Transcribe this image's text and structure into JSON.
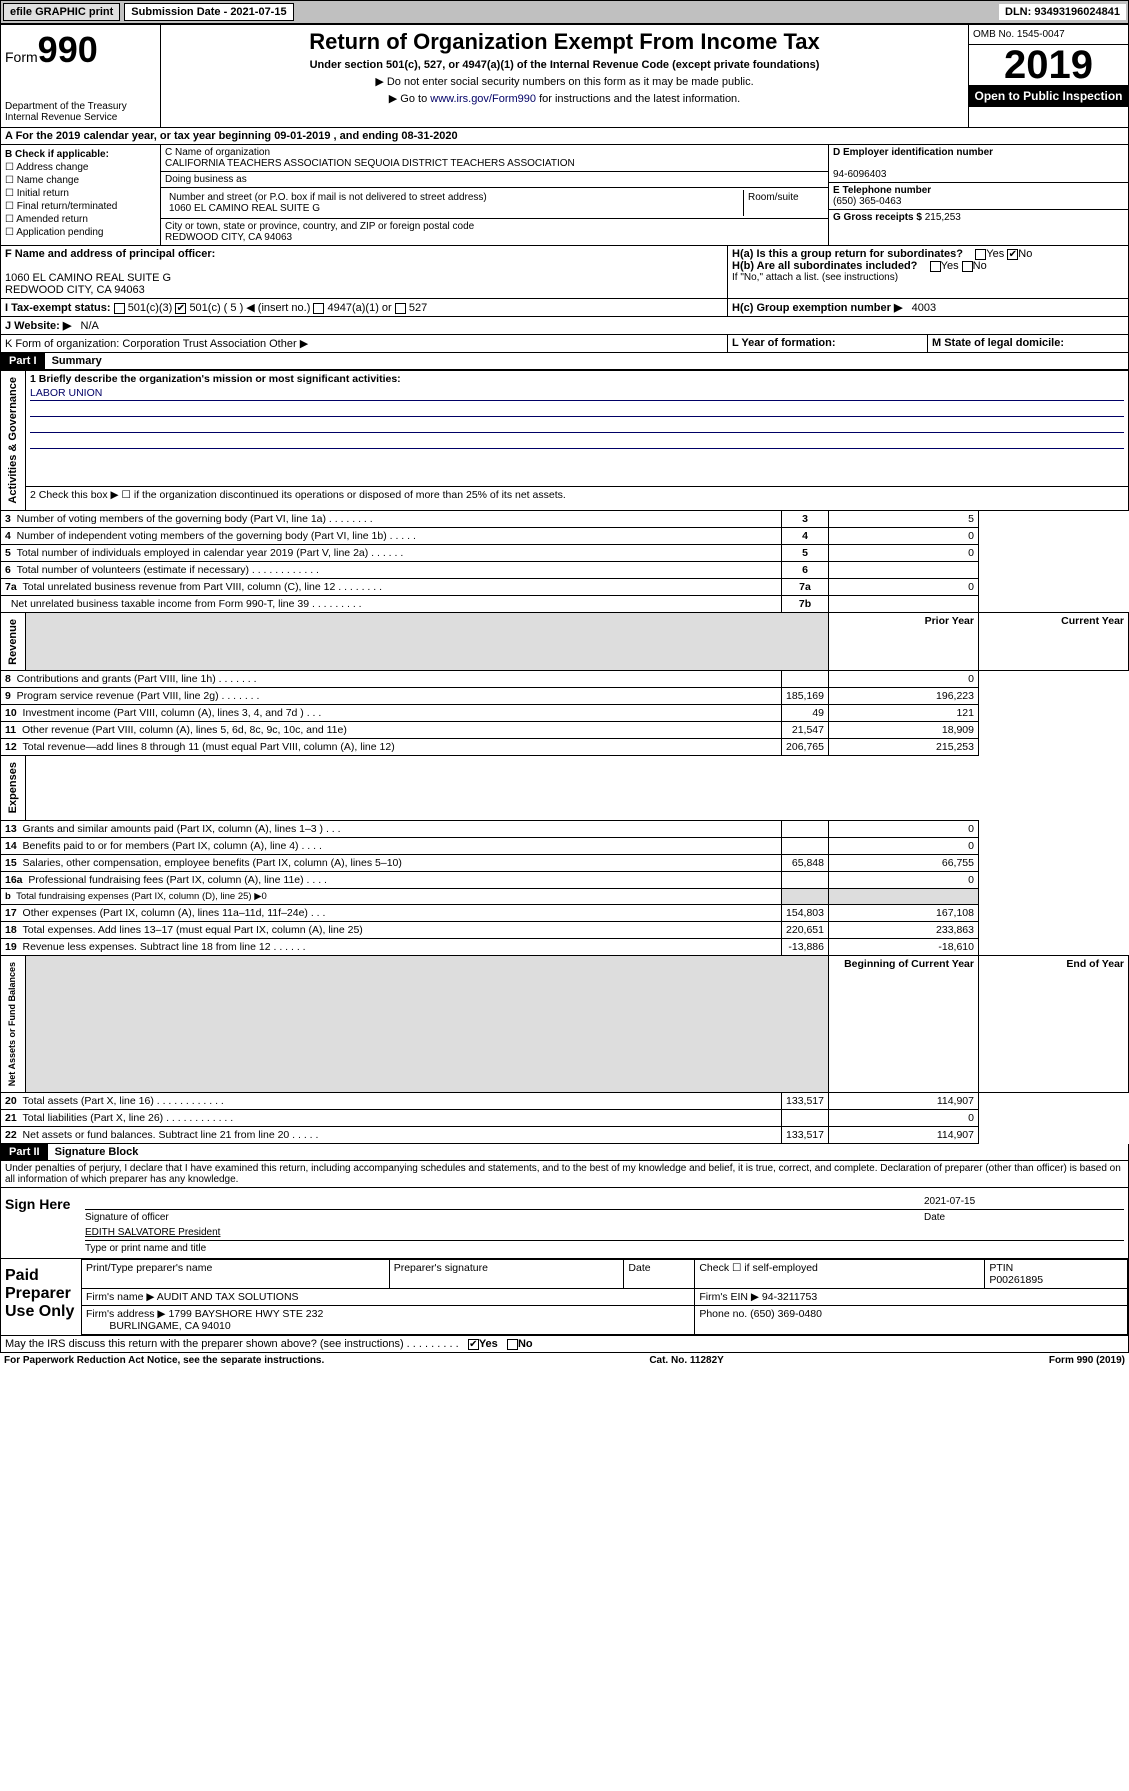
{
  "top": {
    "efile": "efile GRAPHIC print",
    "sub_label": "Submission Date - 2021-07-15",
    "dln": "DLN: 93493196024841"
  },
  "header": {
    "form_prefix": "Form",
    "form_num": "990",
    "title": "Return of Organization Exempt From Income Tax",
    "subtitle": "Under section 501(c), 527, or 4947(a)(1) of the Internal Revenue Code (except private foundations)",
    "note1": "▶ Do not enter social security numbers on this form as it may be made public.",
    "note2_pre": "▶ Go to ",
    "note2_link": "www.irs.gov/Form990",
    "note2_post": " for instructions and the latest information.",
    "dept": "Department of the Treasury\nInternal Revenue Service",
    "omb": "OMB No. 1545-0047",
    "year": "2019",
    "open": "Open to Public Inspection"
  },
  "line_a": "A For the 2019 calendar year, or tax year beginning 09-01-2019   , and ending 08-31-2020",
  "box_b": {
    "title": "B Check if applicable:",
    "items": [
      "Address change",
      "Name change",
      "Initial return",
      "Final return/terminated",
      "Amended return",
      "Application pending"
    ]
  },
  "box_c": {
    "name_label": "C Name of organization",
    "name": "CALIFORNIA TEACHERS ASSOCIATION SEQUOIA DISTRICT TEACHERS ASSOCIATION",
    "dba": "Doing business as",
    "addr_label": "Number and street (or P.O. box if mail is not delivered to street address)",
    "room": "Room/suite",
    "addr": "1060 EL CAMINO REAL SUITE G",
    "city_label": "City or town, state or province, country, and ZIP or foreign postal code",
    "city": "REDWOOD CITY, CA  94063"
  },
  "box_d": {
    "label": "D Employer identification number",
    "val": "94-6096403"
  },
  "box_e": {
    "label": "E Telephone number",
    "val": "(650) 365-0463"
  },
  "box_g": {
    "label": "G Gross receipts $",
    "val": "215,253"
  },
  "box_f": {
    "label": "F  Name and address of principal officer:",
    "addr1": "1060 EL CAMINO REAL SUITE G",
    "addr2": "REDWOOD CITY, CA  94063"
  },
  "box_h": {
    "ha": "H(a)  Is this a group return for subordinates?",
    "hb": "H(b)  Are all subordinates included?",
    "hb_note": "If \"No,\" attach a list. (see instructions)",
    "hc": "H(c)  Group exemption number ▶",
    "hc_val": "4003",
    "yes": "Yes",
    "no": "No"
  },
  "tax_status": {
    "label": "I   Tax-exempt status:",
    "c3": "501(c)(3)",
    "c": "501(c) ( 5 ) ◀ (insert no.)",
    "a1": "4947(a)(1) or",
    "s527": "527"
  },
  "website": {
    "label": "J   Website: ▶",
    "val": "N/A"
  },
  "line_k": "K Form of organization:   Corporation   Trust   Association   Other ▶",
  "line_l": "L Year of formation:",
  "line_m": "M State of legal domicile:",
  "part1": {
    "header": "Part I",
    "title": "Summary",
    "q1": "1  Briefly describe the organization's mission or most significant activities:",
    "mission": "LABOR UNION",
    "q2": "2   Check this box ▶ ☐  if the organization discontinued its operations or disposed of more than 25% of its net assets.",
    "rows_gov": [
      {
        "n": "3",
        "t": "Number of voting members of the governing body (Part VI, line 1a)  .   .   .   .   .   .   .   .",
        "k": "3",
        "v": "5"
      },
      {
        "n": "4",
        "t": "Number of independent voting members of the governing body (Part VI, line 1b)  .   .   .   .   .",
        "k": "4",
        "v": "0"
      },
      {
        "n": "5",
        "t": "Total number of individuals employed in calendar year 2019 (Part V, line 2a)  .   .   .   .   .   .",
        "k": "5",
        "v": "0"
      },
      {
        "n": "6",
        "t": "Total number of volunteers (estimate if necessary)  .   .   .   .   .   .   .   .   .   .   .   .",
        "k": "6",
        "v": ""
      },
      {
        "n": "7a",
        "t": "Total unrelated business revenue from Part VIII, column (C), line 12  .   .   .   .   .   .   .   .",
        "k": "7a",
        "v": "0"
      },
      {
        "n": "",
        "t": "Net unrelated business taxable income from Form 990-T, line 39  .   .   .   .   .   .   .   .   .",
        "k": "7b",
        "v": ""
      }
    ],
    "col_prior": "Prior Year",
    "col_current": "Current Year",
    "rows_rev": [
      {
        "n": "8",
        "t": "Contributions and grants (Part VIII, line 1h)  .   .   .   .   .   .   .",
        "p": "",
        "c": "0"
      },
      {
        "n": "9",
        "t": "Program service revenue (Part VIII, line 2g)  .   .   .   .   .   .   .",
        "p": "185,169",
        "c": "196,223"
      },
      {
        "n": "10",
        "t": "Investment income (Part VIII, column (A), lines 3, 4, and 7d )  .   .   .",
        "p": "49",
        "c": "121"
      },
      {
        "n": "11",
        "t": "Other revenue (Part VIII, column (A), lines 5, 6d, 8c, 9c, 10c, and 11e)",
        "p": "21,547",
        "c": "18,909"
      },
      {
        "n": "12",
        "t": "Total revenue—add lines 8 through 11 (must equal Part VIII, column (A), line 12)",
        "p": "206,765",
        "c": "215,253"
      }
    ],
    "rows_exp": [
      {
        "n": "13",
        "t": "Grants and similar amounts paid (Part IX, column (A), lines 1–3 )  .   .   .",
        "p": "",
        "c": "0"
      },
      {
        "n": "14",
        "t": "Benefits paid to or for members (Part IX, column (A), line 4)  .   .   .   .",
        "p": "",
        "c": "0"
      },
      {
        "n": "15",
        "t": "Salaries, other compensation, employee benefits (Part IX, column (A), lines 5–10)",
        "p": "65,848",
        "c": "66,755"
      },
      {
        "n": "16a",
        "t": "Professional fundraising fees (Part IX, column (A), line 11e)  .   .   .   .",
        "p": "",
        "c": "0"
      },
      {
        "n": "b",
        "t": "Total fundraising expenses (Part IX, column (D), line 25) ▶0",
        "p": "—",
        "c": "—"
      },
      {
        "n": "17",
        "t": "Other expenses (Part IX, column (A), lines 11a–11d, 11f–24e)  .   .   .",
        "p": "154,803",
        "c": "167,108"
      },
      {
        "n": "18",
        "t": "Total expenses. Add lines 13–17 (must equal Part IX, column (A), line 25)",
        "p": "220,651",
        "c": "233,863"
      },
      {
        "n": "19",
        "t": "Revenue less expenses. Subtract line 18 from line 12  .   .   .   .   .   .",
        "p": "-13,886",
        "c": "-18,610"
      }
    ],
    "col_begin": "Beginning of Current Year",
    "col_end": "End of Year",
    "rows_net": [
      {
        "n": "20",
        "t": "Total assets (Part X, line 16)  .   .   .   .   .   .   .   .   .   .   .   .",
        "p": "133,517",
        "c": "114,907"
      },
      {
        "n": "21",
        "t": "Total liabilities (Part X, line 26)  .   .   .   .   .   .   .   .   .   .   .   .",
        "p": "",
        "c": "0"
      },
      {
        "n": "22",
        "t": "Net assets or fund balances. Subtract line 21 from line 20  .   .   .   .   .",
        "p": "133,517",
        "c": "114,907"
      }
    ],
    "vtab_gov": "Activities & Governance",
    "vtab_rev": "Revenue",
    "vtab_exp": "Expenses",
    "vtab_net": "Net Assets or Fund Balances"
  },
  "part2": {
    "header": "Part II",
    "title": "Signature Block",
    "decl": "Under penalties of perjury, I declare that I have examined this return, including accompanying schedules and statements, and to the best of my knowledge and belief, it is true, correct, and complete. Declaration of preparer (other than officer) is based on all information of which preparer has any knowledge.",
    "sign_here": "Sign Here",
    "sig_officer": "Signature of officer",
    "date_val": "2021-07-15",
    "date": "Date",
    "officer_name": "EDITH SALVATORE  President",
    "type_name": "Type or print name and title",
    "paid": "Paid Preparer Use Only",
    "prep_name_h": "Print/Type preparer's name",
    "prep_sig_h": "Preparer's signature",
    "date_h": "Date",
    "check_self": "Check ☐ if self-employed",
    "ptin_h": "PTIN",
    "ptin": "P00261895",
    "firm_name_l": "Firm's name    ▶",
    "firm_name": "AUDIT AND TAX SOLUTIONS",
    "firm_ein_l": "Firm's EIN ▶",
    "firm_ein": "94-3211753",
    "firm_addr_l": "Firm's address ▶",
    "firm_addr": "1799 BAYSHORE HWY STE 232",
    "firm_city": "BURLINGAME, CA  94010",
    "phone_l": "Phone no.",
    "phone": "(650) 369-0480",
    "discuss": "May the IRS discuss this return with the preparer shown above? (see instructions)   .   .   .   .   .   .   .   .   .",
    "yes": "Yes",
    "no": "No"
  },
  "footer": {
    "left": "For Paperwork Reduction Act Notice, see the separate instructions.",
    "mid": "Cat. No. 11282Y",
    "right": "Form 990 (2019)"
  }
}
